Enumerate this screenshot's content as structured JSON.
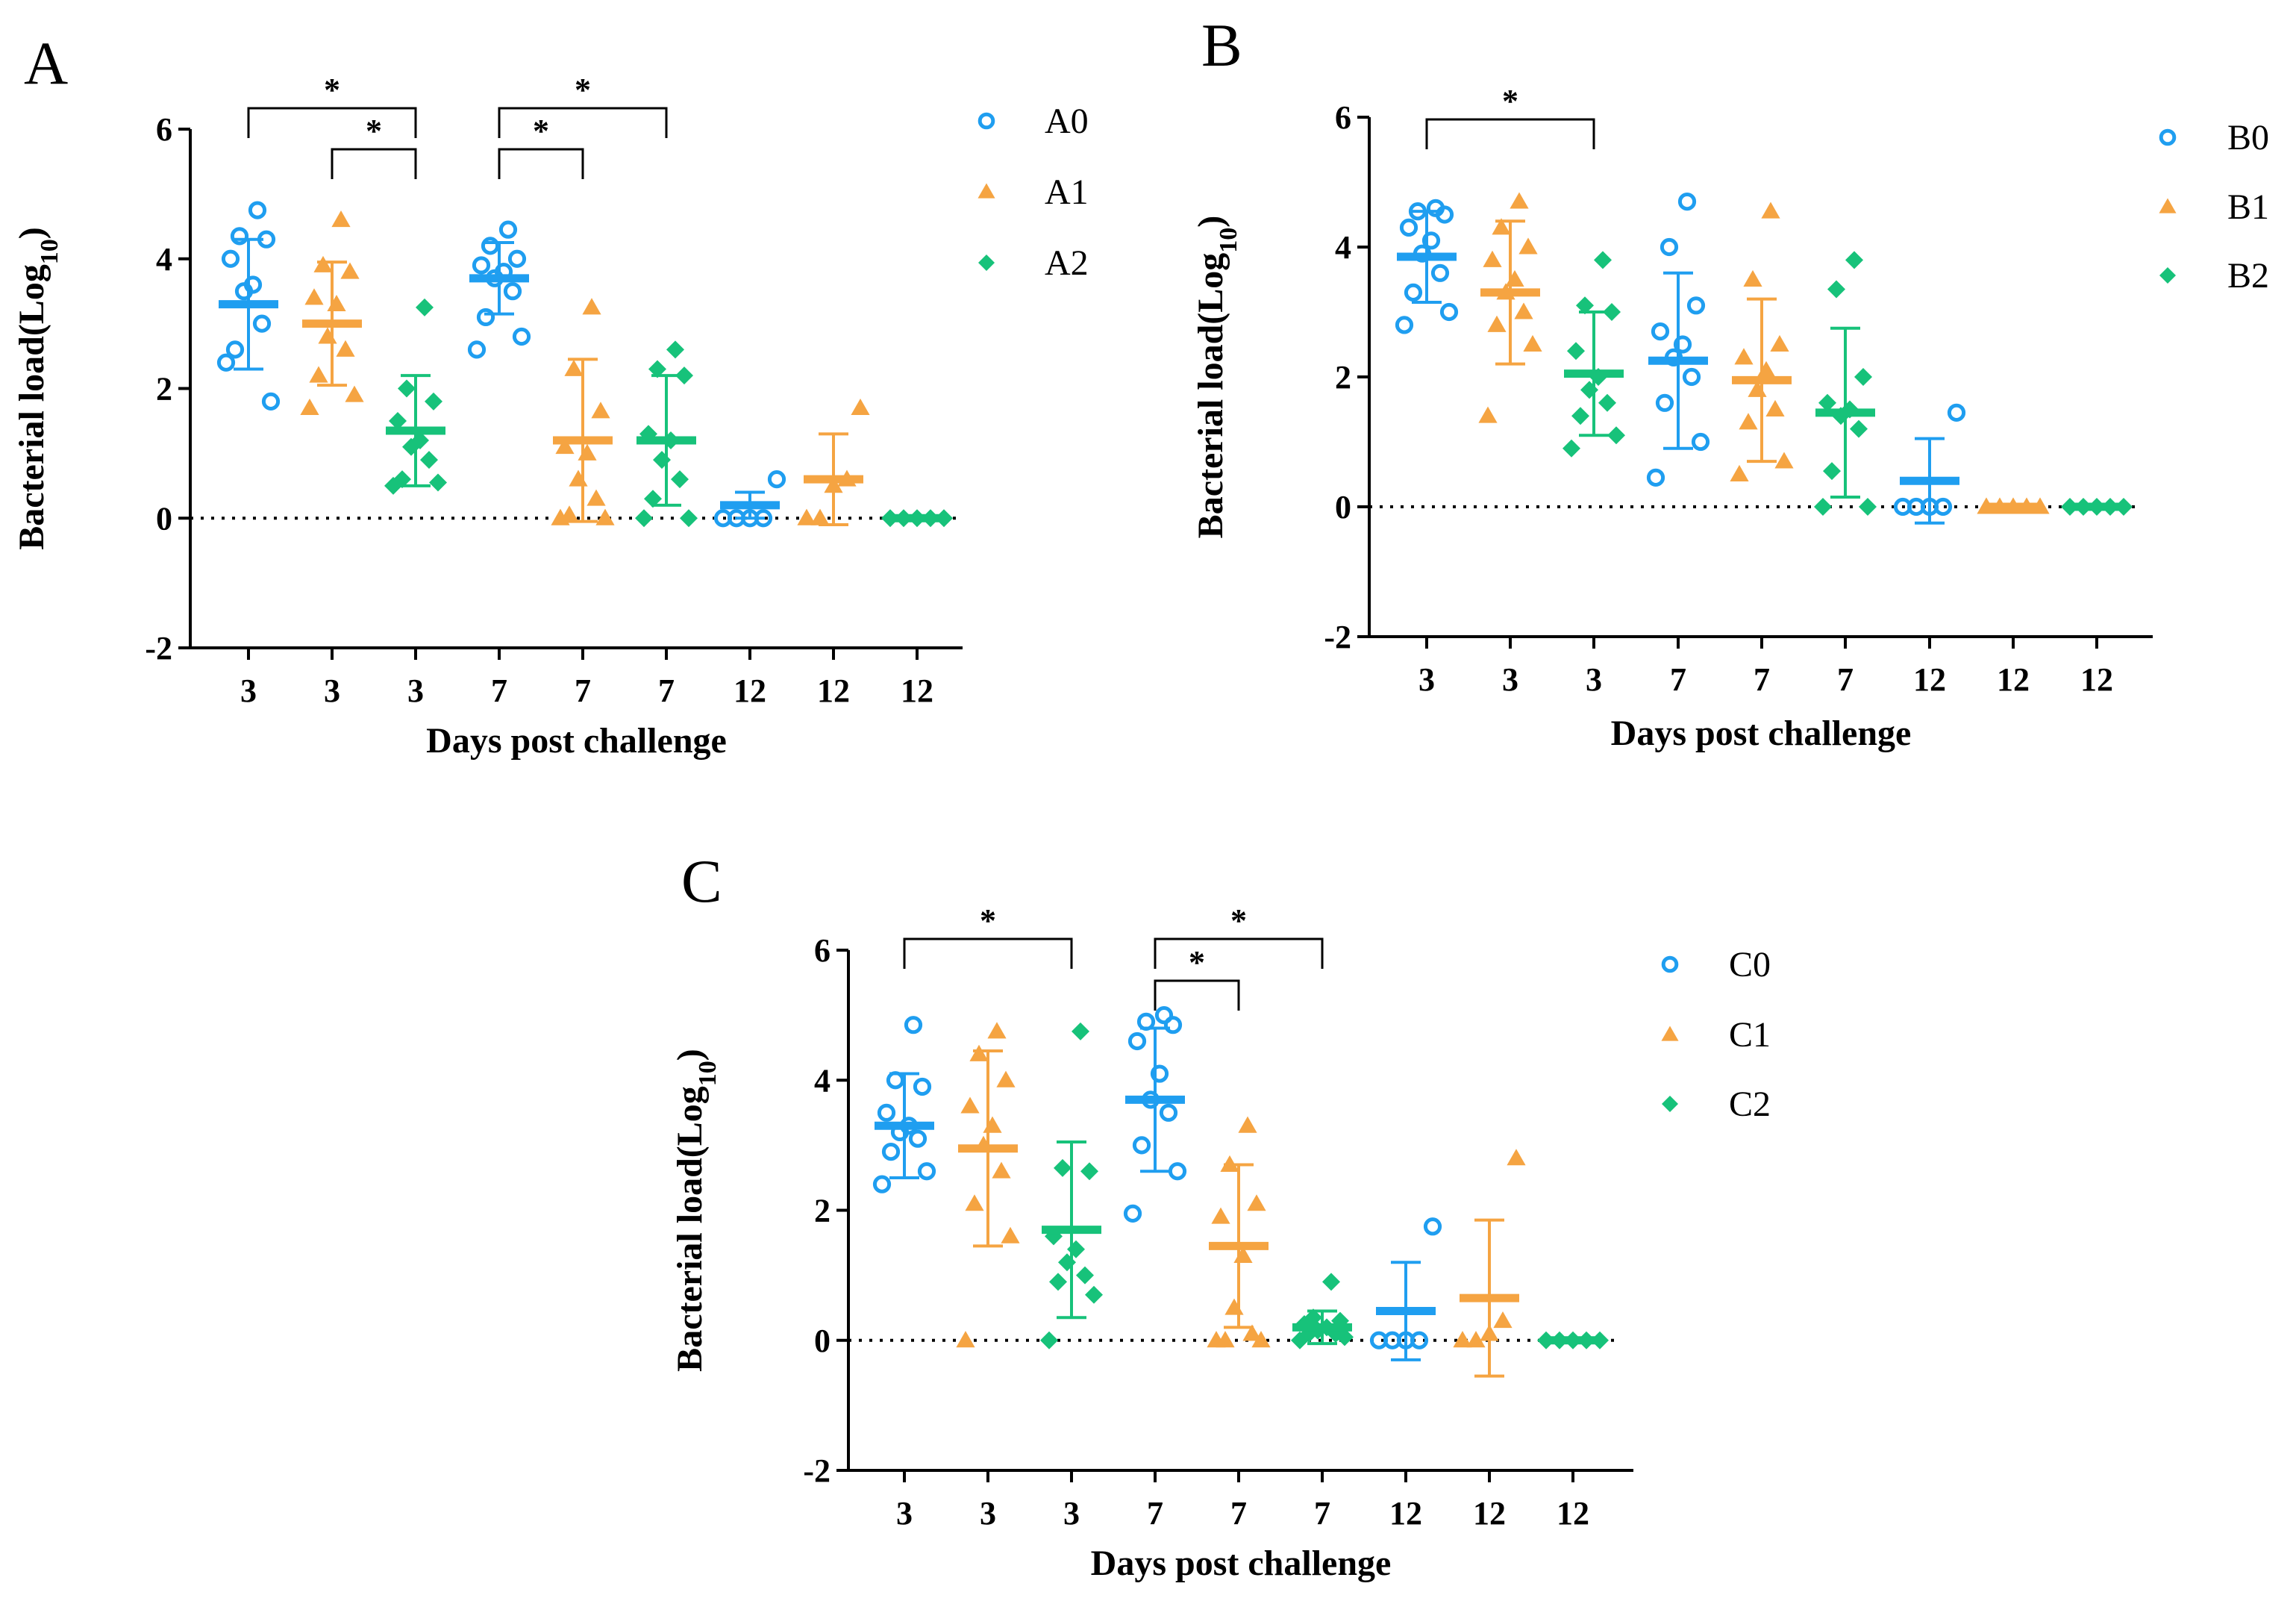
{
  "chart_data": [
    {
      "type": "scatter",
      "panel": "A",
      "xlabel": "Days post challenge",
      "ylabel": "Bacterial load(Log",
      "ylabel_sub": "10",
      "ylabel_end": ")",
      "ylim": [
        -2,
        6
      ],
      "yticks": [
        "6",
        "4",
        "2",
        "0",
        "-2"
      ],
      "categories": [
        "3",
        "3",
        "3",
        "7",
        "7",
        "7",
        "12",
        "12",
        "12"
      ],
      "legend": [
        "A0",
        "A1",
        "A2"
      ],
      "points": [
        [
          2.4,
          1.8,
          2.6,
          3.0,
          3.5,
          3.6,
          4.0,
          4.3,
          4.35,
          4.75
        ],
        [
          1.7,
          1.9,
          2.2,
          2.6,
          2.8,
          3.3,
          3.4,
          3.8,
          3.9,
          4.6
        ],
        [
          0.5,
          0.55,
          0.6,
          0.9,
          1.1,
          1.2,
          1.5,
          1.8,
          2.0,
          3.25
        ],
        [
          2.6,
          2.8,
          3.1,
          3.5,
          3.7,
          3.8,
          3.9,
          4.0,
          4.2,
          4.45
        ],
        [
          0.0,
          0.0,
          0.05,
          0.3,
          0.6,
          1.0,
          1.1,
          1.65,
          2.3,
          3.25
        ],
        [
          0.0,
          0.0,
          0.3,
          0.6,
          0.9,
          1.2,
          1.3,
          2.2,
          2.3,
          2.6
        ],
        [
          0.0,
          0.0,
          0.0,
          0.0,
          0.6
        ],
        [
          0.0,
          0.0,
          0.5,
          0.6,
          1.7
        ],
        [
          0.0,
          0.0,
          0.0,
          0.0,
          0.0
        ]
      ],
      "means": [
        3.3,
        3.0,
        1.35,
        3.7,
        1.2,
        1.2,
        0.2,
        0.6,
        0.0
      ],
      "sds": [
        1.0,
        0.95,
        0.85,
        0.55,
        1.25,
        1.0,
        0.2,
        0.7,
        0.0
      ],
      "significance": [
        {
          "from": 0,
          "to": 2,
          "label": "*"
        },
        {
          "from": 1,
          "to": 2,
          "label": "*"
        },
        {
          "from": 3,
          "to": 5,
          "label": "*"
        },
        {
          "from": 3,
          "to": 4,
          "label": "*"
        }
      ]
    },
    {
      "type": "scatter",
      "panel": "B",
      "xlabel": "Days post challenge",
      "ylabel": "Bacterial load(Log",
      "ylabel_sub": "10",
      "ylabel_end": ")",
      "ylim": [
        -2,
        6
      ],
      "yticks": [
        "6",
        "4",
        "2",
        "0",
        "-2"
      ],
      "categories": [
        "3",
        "3",
        "3",
        "7",
        "7",
        "7",
        "12",
        "12",
        "12"
      ],
      "legend": [
        "B0",
        "B1",
        "B2"
      ],
      "points": [
        [
          2.8,
          3.0,
          3.3,
          3.6,
          3.9,
          4.1,
          4.3,
          4.5,
          4.55,
          4.6
        ],
        [
          1.4,
          2.5,
          2.8,
          3.0,
          3.3,
          3.5,
          3.8,
          4.0,
          4.3,
          4.7
        ],
        [
          0.9,
          1.1,
          1.4,
          1.6,
          1.8,
          2.0,
          2.4,
          3.0,
          3.1,
          3.8
        ],
        [
          0.45,
          1.0,
          1.6,
          2.0,
          2.3,
          2.5,
          2.7,
          3.1,
          4.0,
          4.7
        ],
        [
          0.5,
          0.7,
          1.3,
          1.5,
          1.8,
          2.1,
          2.3,
          2.5,
          3.5,
          4.55
        ],
        [
          0.0,
          0.0,
          0.55,
          1.2,
          1.4,
          1.5,
          1.6,
          2.0,
          3.35,
          3.8
        ],
        [
          0.0,
          0.0,
          0.0,
          0.0,
          1.45
        ],
        [
          0.0,
          0.0,
          0.0,
          0.0,
          0.0
        ],
        [
          0.0,
          0.0,
          0.0,
          0.0,
          0.0
        ]
      ],
      "means": [
        3.85,
        3.3,
        2.05,
        2.25,
        1.95,
        1.45,
        0.4,
        0.0,
        0.0
      ],
      "sds": [
        0.7,
        1.1,
        0.95,
        1.35,
        1.25,
        1.3,
        0.65,
        0.0,
        0.0
      ],
      "significance": [
        {
          "from": 0,
          "to": 2,
          "label": "*"
        }
      ]
    },
    {
      "type": "scatter",
      "panel": "C",
      "xlabel": "Days post challenge",
      "ylabel": "Bacterial load(Log",
      "ylabel_sub": "10",
      "ylabel_end": ")",
      "ylim": [
        -2,
        6
      ],
      "yticks": [
        "6",
        "4",
        "2",
        "0",
        "-2"
      ],
      "categories": [
        "3",
        "3",
        "3",
        "7",
        "7",
        "7",
        "12",
        "12",
        "12"
      ],
      "legend": [
        "C0",
        "C1",
        "C2"
      ],
      "points": [
        [
          2.4,
          2.6,
          2.9,
          3.1,
          3.2,
          3.3,
          3.5,
          3.9,
          4.0,
          4.85
        ],
        [
          0.0,
          1.6,
          2.1,
          2.6,
          3.0,
          3.3,
          3.6,
          4.0,
          4.4,
          4.75
        ],
        [
          0.0,
          0.7,
          0.9,
          1.0,
          1.2,
          1.4,
          1.6,
          2.6,
          2.65,
          4.75
        ],
        [
          1.95,
          2.6,
          3.0,
          3.5,
          3.7,
          4.1,
          4.6,
          4.85,
          4.9,
          5.0
        ],
        [
          0.0,
          0.0,
          0.0,
          0.1,
          0.5,
          1.3,
          1.9,
          2.1,
          2.7,
          3.3
        ],
        [
          0.0,
          0.05,
          0.1,
          0.1,
          0.15,
          0.2,
          0.25,
          0.3,
          0.35,
          0.9
        ],
        [
          0.0,
          0.0,
          0.0,
          0.0,
          1.75
        ],
        [
          0.0,
          0.0,
          0.1,
          0.3,
          2.8
        ],
        [
          0.0,
          0.0,
          0.0,
          0.0,
          0.0
        ]
      ],
      "means": [
        3.3,
        2.95,
        1.7,
        3.7,
        1.45,
        0.2,
        0.45,
        0.65,
        0.0
      ],
      "sds": [
        0.8,
        1.5,
        1.35,
        1.1,
        1.25,
        0.25,
        0.75,
        1.2,
        0.0
      ],
      "significance": [
        {
          "from": 0,
          "to": 2,
          "label": "*"
        },
        {
          "from": 3,
          "to": 5,
          "label": "*"
        },
        {
          "from": 3,
          "to": 4,
          "label": "*"
        }
      ]
    }
  ],
  "colors": [
    "#1f9ef0",
    "#f5a442",
    "#17c27a"
  ],
  "marker_shapes": [
    "circle",
    "triangle",
    "diamond"
  ]
}
